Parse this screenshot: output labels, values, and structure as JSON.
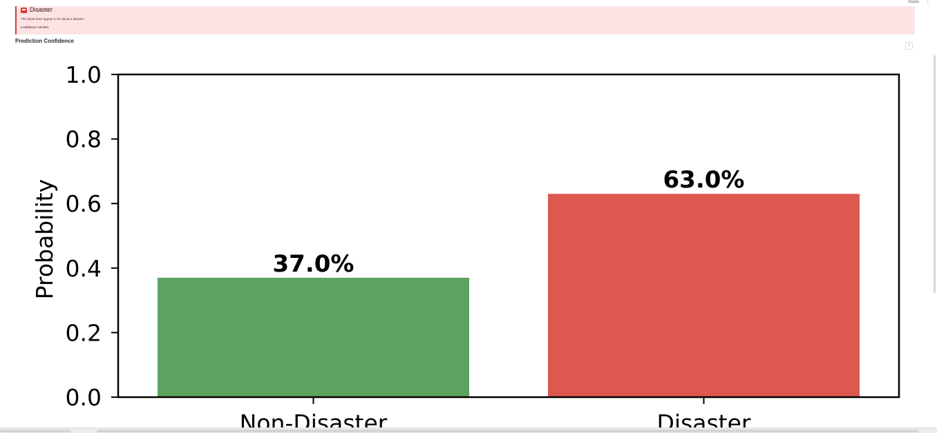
{
  "toolbar": {
    "deploy_label": "Deploy",
    "menu_icon": "more-vert-icon"
  },
  "alert": {
    "icon": "alarm-icon",
    "title": "Disaster",
    "message": "This tweet does appear to be about a disaster.",
    "confidence": "Confidence: 63.00%",
    "background": "#fde4e4",
    "border": "#d33b3b"
  },
  "section": {
    "title": "Prediction Confidence"
  },
  "chart_data": {
    "type": "bar",
    "categories": [
      "Non-Disaster",
      "Disaster"
    ],
    "values": [
      0.37,
      0.63
    ],
    "value_labels": [
      "37.0%",
      "63.0%"
    ],
    "colors": [
      "#5ba35e",
      "#dd584f"
    ],
    "ylabel": "Probability",
    "ylim": [
      0,
      1.0
    ],
    "yticks": [
      "0.0",
      "0.2",
      "0.4",
      "0.6",
      "0.8",
      "1.0"
    ],
    "grid": false
  }
}
